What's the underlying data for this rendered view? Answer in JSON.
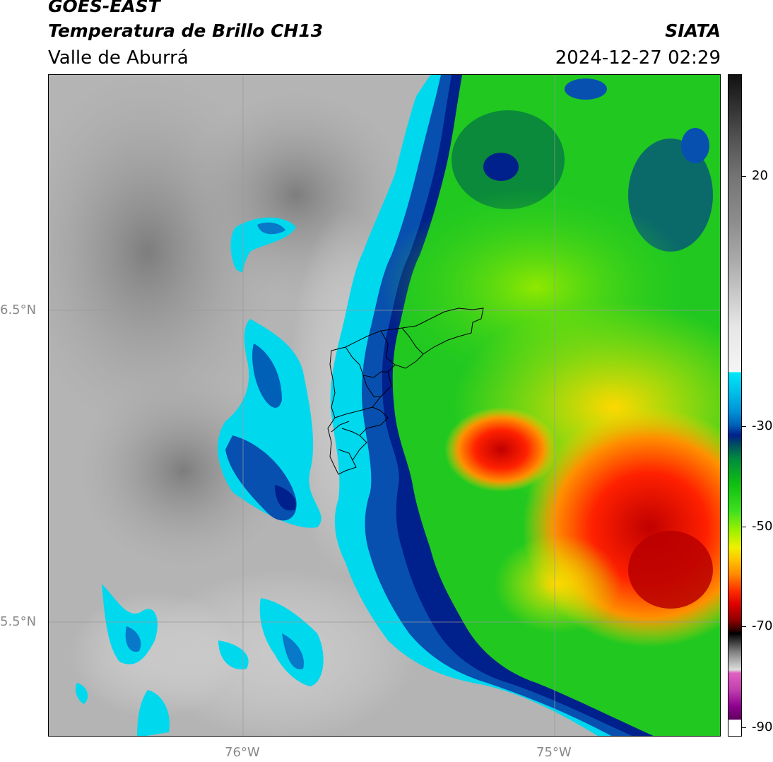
{
  "header": {
    "satellite": "GOES-EAST",
    "product": "Temperatura de Brillo CH13",
    "region": "Valle de Aburrá",
    "agency": "SIATA",
    "datetime": "2024-12-27 02:29"
  },
  "axes": {
    "lat_labels": [
      "6.5°N",
      "5.5°N"
    ],
    "lon_labels": [
      "76°W",
      "75°W"
    ]
  },
  "colorbar": {
    "tick_labels": [
      "20",
      "-30",
      "-50",
      "-70",
      "-90"
    ],
    "colors": {
      "warm_gray_top": "#1a1a1a",
      "gray_mid": "#8c8c8c",
      "white": "#f5f5f5",
      "cyan": "#00e0f0",
      "dark_blue": "#00208c",
      "green": "#10d010",
      "yellow": "#f0f000",
      "orange": "#ff8c00",
      "red": "#e00000",
      "magenta": "#e040c0",
      "purple": "#800080"
    }
  }
}
